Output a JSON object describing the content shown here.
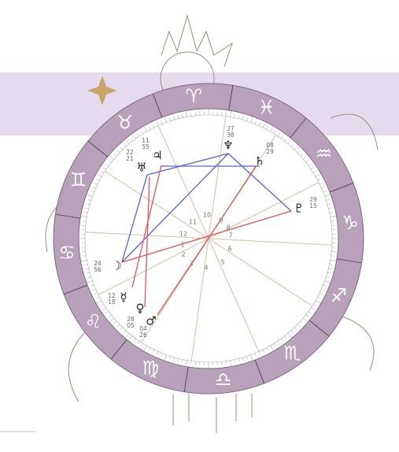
{
  "signs": [
    "♈",
    "♓",
    "♒",
    "♑",
    "♐",
    "♏",
    "♎",
    "♍",
    "♌",
    "♋",
    "♊",
    "♉"
  ],
  "houses": [
    "1",
    "2",
    "3",
    "4",
    "5",
    "6",
    "7",
    "8",
    "9",
    "10",
    "11",
    "12"
  ],
  "planets": [
    {
      "glyph": "♅",
      "degree": "22",
      "minute": "21"
    },
    {
      "glyph": "♃",
      "degree": "11",
      "minute": "55"
    },
    {
      "glyph": "♆",
      "degree": "27",
      "minute": "38"
    },
    {
      "glyph": "♄",
      "degree": "08",
      "minute": "29"
    },
    {
      "glyph": "♇",
      "degree": "29",
      "minute": "15"
    },
    {
      "glyph": "☽",
      "degree": "24",
      "minute": "56"
    },
    {
      "glyph": "☿",
      "degree": "12",
      "minute": "18"
    },
    {
      "glyph": "♀",
      "degree": "28",
      "minute": "05"
    },
    {
      "glyph": "♂",
      "degree": "04",
      "minute": "26"
    }
  ]
}
